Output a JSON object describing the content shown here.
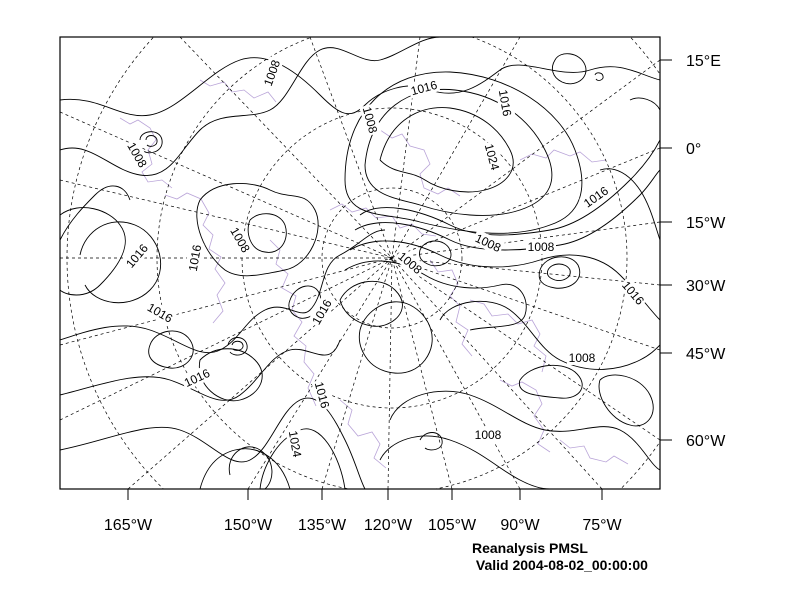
{
  "colors": {
    "frame": "#000000",
    "contour": "#000000",
    "grid": "#000000",
    "coastline": "#b9a4d8",
    "background": "#ffffff"
  },
  "bottom_axis_labels": [
    "165°W",
    "150°W",
    "135°W",
    "120°W",
    "105°W",
    "90°W",
    "75°W"
  ],
  "right_axis_labels": [
    "15°E",
    "0°",
    "15°W",
    "30°W",
    "45°W",
    "60°W"
  ],
  "contour_labels": [
    {
      "text": "1008",
      "angle": -70
    },
    {
      "text": "1008",
      "angle": 75
    },
    {
      "text": "1016",
      "angle": -15
    },
    {
      "text": "1016",
      "angle": 80
    },
    {
      "text": "1008",
      "angle": 60
    },
    {
      "text": "1024",
      "angle": 75
    },
    {
      "text": "1016",
      "angle": -35
    },
    {
      "text": "1008",
      "angle": 60
    },
    {
      "text": "1016",
      "angle": -50
    },
    {
      "text": "1016",
      "angle": -80
    },
    {
      "text": "1008",
      "angle": 40
    },
    {
      "text": "1008",
      "angle": 25
    },
    {
      "text": "1008",
      "angle": 0
    },
    {
      "text": "1016",
      "angle": 50
    },
    {
      "text": "1016",
      "angle": 30
    },
    {
      "text": "1016",
      "angle": -60
    },
    {
      "text": "1016",
      "angle": -25
    },
    {
      "text": "1008",
      "angle": 0
    },
    {
      "text": "1016",
      "angle": 75
    },
    {
      "text": "1024",
      "angle": 80
    },
    {
      "text": "1008",
      "angle": 0
    }
  ],
  "caption": {
    "line1": "Reanalysis PMSL",
    "line2": " Valid 2004-08-02_00:00:00"
  }
}
